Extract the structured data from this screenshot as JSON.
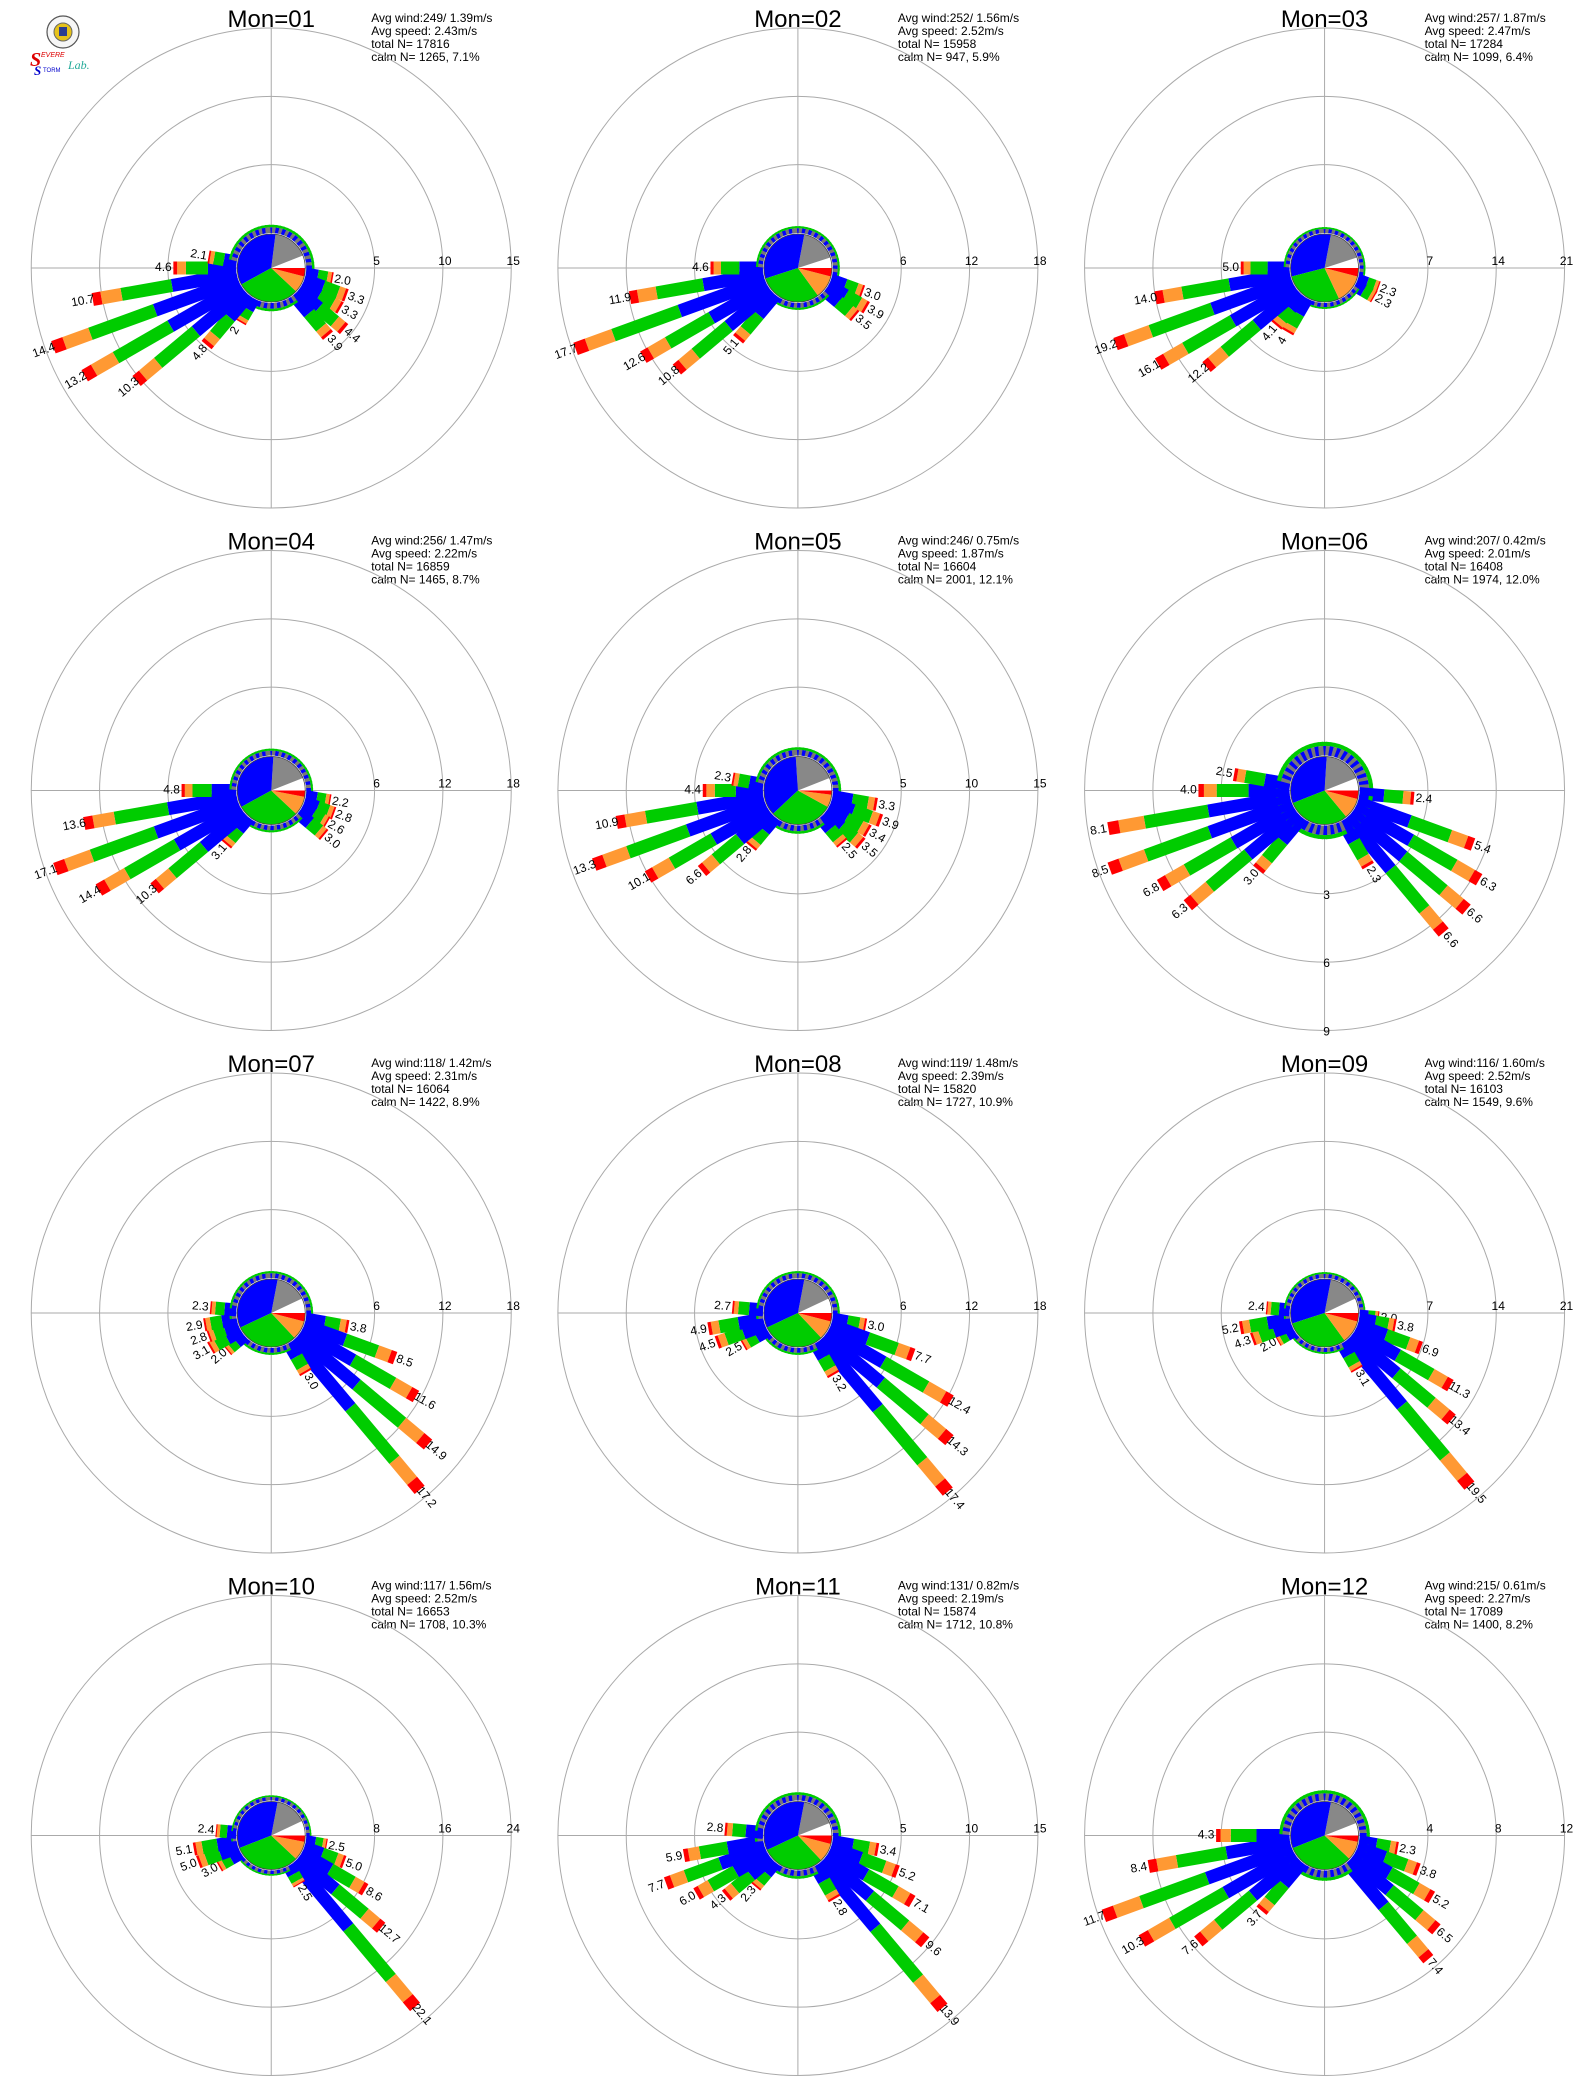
{
  "logo": {
    "text_s1": "S",
    "text_evere": "EVERE",
    "text_s2": "S",
    "text_torm": "TORM",
    "text_lab": "Lab."
  },
  "colors": {
    "calm": "#888888",
    "n": "#ffffff",
    "bin1": "#0000ff",
    "bin2": "#00cc00",
    "bin3": "#ff9933",
    "bin4": "#ff0000",
    "ring": "#aaaaaa"
  },
  "chart_data": [
    {
      "type": "polar-bar",
      "title": "Mon=01",
      "stats": [
        "Avg wind:249/ 1.39m/s",
        "Avg speed: 2.43m/s",
        "total N=      17816",
        "calm N=   1265,   7.1%"
      ],
      "rings": [
        "5",
        "10",
        "15"
      ],
      "rmax": 15,
      "ring_step": 5,
      "labeled": [
        {
          "dir": 250,
          "value": "14.4"
        },
        {
          "dir": 240,
          "value": "13.2"
        },
        {
          "dir": 230,
          "value": "10.3"
        },
        {
          "dir": 260,
          "value": "10.7"
        },
        {
          "dir": 270,
          "value": "4.6"
        },
        {
          "dir": 280,
          "value": "2.1"
        },
        {
          "dir": 220,
          "value": "4.8"
        },
        {
          "dir": 210,
          "value": "2"
        },
        {
          "dir": 100,
          "value": "2.0"
        },
        {
          "dir": 110,
          "value": "3.3"
        },
        {
          "dir": 120,
          "value": "3.3"
        },
        {
          "dir": 130,
          "value": "4.4"
        },
        {
          "dir": 140,
          "value": "3.9"
        }
      ],
      "pie": {
        "n": 6,
        "calm": 17,
        "bin1": 35,
        "bin2": 30,
        "bin3": 8,
        "bin4": 4
      }
    },
    {
      "type": "polar-bar",
      "title": "Mon=02",
      "stats": [
        "Avg wind:252/ 1.56m/s",
        "Avg speed: 2.52m/s",
        "total N=      15958",
        "calm N=    947,   5.9%"
      ],
      "rings": [
        "6",
        "12",
        "18"
      ],
      "rmax": 18,
      "ring_step": 6,
      "labeled": [
        {
          "dir": 250,
          "value": "17.7"
        },
        {
          "dir": 240,
          "value": "12.6"
        },
        {
          "dir": 230,
          "value": "10.8"
        },
        {
          "dir": 260,
          "value": "11.9"
        },
        {
          "dir": 270,
          "value": "4.6"
        },
        {
          "dir": 220,
          "value": "5.1"
        },
        {
          "dir": 110,
          "value": "3.0"
        },
        {
          "dir": 120,
          "value": "3.9"
        },
        {
          "dir": 130,
          "value": "3.5"
        }
      ],
      "pie": {
        "n": 5,
        "calm": 17,
        "bin1": 33,
        "bin2": 30,
        "bin3": 11,
        "bin4": 4
      }
    },
    {
      "type": "polar-bar",
      "title": "Mon=03",
      "stats": [
        "Avg wind:257/ 1.87m/s",
        "Avg speed: 2.47m/s",
        "total N=      17284",
        "calm N=   1099,   6.4%"
      ],
      "rings": [
        "7",
        "14",
        "21"
      ],
      "rmax": 21,
      "ring_step": 7,
      "labeled": [
        {
          "dir": 250,
          "value": "19.2"
        },
        {
          "dir": 240,
          "value": "16.1"
        },
        {
          "dir": 230,
          "value": "12.2"
        },
        {
          "dir": 260,
          "value": "14.0"
        },
        {
          "dir": 270,
          "value": "5.0"
        },
        {
          "dir": 220,
          "value": "4.1"
        },
        {
          "dir": 210,
          "value": "4"
        },
        {
          "dir": 110,
          "value": "2.3"
        },
        {
          "dir": 120,
          "value": "2.3"
        }
      ],
      "pie": {
        "n": 5,
        "calm": 17,
        "bin1": 32,
        "bin2": 28,
        "bin3": 14,
        "bin4": 4
      }
    },
    {
      "type": "polar-bar",
      "title": "Mon=04",
      "stats": [
        "Avg wind:256/ 1.47m/s",
        "Avg speed: 2.22m/s",
        "total N=      16859",
        "calm N=   1465,   8.7%"
      ],
      "rings": [
        "6",
        "12",
        "18"
      ],
      "rmax": 18,
      "ring_step": 6,
      "labeled": [
        {
          "dir": 250,
          "value": "17.1"
        },
        {
          "dir": 240,
          "value": "14.4"
        },
        {
          "dir": 230,
          "value": "10.3"
        },
        {
          "dir": 260,
          "value": "13.6"
        },
        {
          "dir": 270,
          "value": "4.8"
        },
        {
          "dir": 220,
          "value": "3.1"
        },
        {
          "dir": 100,
          "value": "2.2"
        },
        {
          "dir": 110,
          "value": "2.8"
        },
        {
          "dir": 120,
          "value": "2.6"
        },
        {
          "dir": 130,
          "value": "3.0"
        }
      ],
      "pie": {
        "n": 6,
        "calm": 18,
        "bin1": 34,
        "bin2": 30,
        "bin3": 9,
        "bin4": 3
      }
    },
    {
      "type": "polar-bar",
      "title": "Mon=05",
      "stats": [
        "Avg wind:246/ 0.75m/s",
        "Avg speed: 1.87m/s",
        "total N=      16604",
        "calm N=   2001,  12.1%"
      ],
      "rings": [
        "5",
        "10",
        "15"
      ],
      "rmax": 15,
      "ring_step": 5,
      "labeled": [
        {
          "dir": 250,
          "value": "13.3"
        },
        {
          "dir": 240,
          "value": "10.1"
        },
        {
          "dir": 260,
          "value": "10.9"
        },
        {
          "dir": 230,
          "value": "6.6"
        },
        {
          "dir": 220,
          "value": "2.8"
        },
        {
          "dir": 270,
          "value": "4.4"
        },
        {
          "dir": 280,
          "value": "2.3"
        },
        {
          "dir": 100,
          "value": "3.3"
        },
        {
          "dir": 110,
          "value": "3.9"
        },
        {
          "dir": 120,
          "value": "3.4"
        },
        {
          "dir": 130,
          "value": "3.5"
        },
        {
          "dir": 140,
          "value": "2.5"
        }
      ],
      "pie": {
        "n": 6,
        "calm": 20,
        "bin1": 36,
        "bin2": 30,
        "bin3": 6,
        "bin4": 2
      }
    },
    {
      "type": "polar-bar",
      "title": "Mon=06",
      "stats": [
        "Avg wind:207/ 0.42m/s",
        "Avg speed: 2.01m/s",
        "total N=      16408",
        "calm N=   1974,  12.0%"
      ],
      "rings": [
        "3",
        "6",
        "9"
      ],
      "rmax": 9,
      "ring_step": 3,
      "ring_labels_down": true,
      "labeled": [
        {
          "dir": 250,
          "value": "8.5"
        },
        {
          "dir": 260,
          "value": "8.1"
        },
        {
          "dir": 240,
          "value": "6.8"
        },
        {
          "dir": 230,
          "value": "6.3"
        },
        {
          "dir": 220,
          "value": "3.0"
        },
        {
          "dir": 270,
          "value": "4.0"
        },
        {
          "dir": 280,
          "value": "2.5"
        },
        {
          "dir": 95,
          "value": "2.4"
        },
        {
          "dir": 110,
          "value": "5.4"
        },
        {
          "dir": 120,
          "value": "6.3"
        },
        {
          "dir": 130,
          "value": "6.6"
        },
        {
          "dir": 140,
          "value": "6.6"
        },
        {
          "dir": 150,
          "value": "2.3"
        }
      ],
      "pie": {
        "n": 6,
        "calm": 18,
        "bin1": 32,
        "bin2": 30,
        "bin3": 10,
        "bin4": 4
      }
    },
    {
      "type": "polar-bar",
      "title": "Mon=07",
      "stats": [
        "Avg wind:118/ 1.42m/s",
        "Avg speed: 2.31m/s",
        "total N=      16064",
        "calm N=   1422,   8.9%"
      ],
      "rings": [
        "6",
        "12",
        "18"
      ],
      "rmax": 18,
      "ring_step": 6,
      "labeled": [
        {
          "dir": 100,
          "value": "3.8"
        },
        {
          "dir": 110,
          "value": "8.5"
        },
        {
          "dir": 120,
          "value": "11.6"
        },
        {
          "dir": 130,
          "value": "14.9"
        },
        {
          "dir": 140,
          "value": "17.2"
        },
        {
          "dir": 150,
          "value": "3.0"
        },
        {
          "dir": 260,
          "value": "2.9"
        },
        {
          "dir": 250,
          "value": "2.8"
        },
        {
          "dir": 240,
          "value": "3.1"
        },
        {
          "dir": 230,
          "value": "2.0"
        },
        {
          "dir": 275,
          "value": "2.3"
        }
      ],
      "pie": {
        "n": 7,
        "calm": 15,
        "bin1": 35,
        "bin2": 30,
        "bin3": 9,
        "bin4": 4
      }
    },
    {
      "type": "polar-bar",
      "title": "Mon=08",
      "stats": [
        "Avg wind:119/ 1.48m/s",
        "Avg speed: 2.39m/s",
        "total N=      15820",
        "calm N=   1727,  10.9%"
      ],
      "rings": [
        "6",
        "12",
        "18"
      ],
      "rmax": 18,
      "ring_step": 6,
      "labeled": [
        {
          "dir": 100,
          "value": "3.0"
        },
        {
          "dir": 110,
          "value": "7.7"
        },
        {
          "dir": 120,
          "value": "12.4"
        },
        {
          "dir": 130,
          "value": "14.3"
        },
        {
          "dir": 140,
          "value": "17.4"
        },
        {
          "dir": 150,
          "value": "3.2"
        },
        {
          "dir": 260,
          "value": "4.9"
        },
        {
          "dir": 250,
          "value": "4.5"
        },
        {
          "dir": 240,
          "value": "2.5"
        },
        {
          "dir": 275,
          "value": "2.7"
        }
      ],
      "pie": {
        "n": 7,
        "calm": 15,
        "bin1": 35,
        "bin2": 30,
        "bin3": 9,
        "bin4": 4
      }
    },
    {
      "type": "polar-bar",
      "title": "Mon=09",
      "stats": [
        "Avg wind:116/ 1.60m/s",
        "Avg speed: 2.52m/s",
        "total N=      16103",
        "calm N=   1549,   9.6%"
      ],
      "rings": [
        "7",
        "14",
        "21"
      ],
      "rmax": 21,
      "ring_step": 7,
      "labeled": [
        {
          "dir": 95,
          "value": "2.0"
        },
        {
          "dir": 100,
          "value": "3.8"
        },
        {
          "dir": 110,
          "value": "6.9"
        },
        {
          "dir": 120,
          "value": "11.3"
        },
        {
          "dir": 130,
          "value": "13.4"
        },
        {
          "dir": 140,
          "value": "19.5"
        },
        {
          "dir": 150,
          "value": "3.1"
        },
        {
          "dir": 260,
          "value": "5.2"
        },
        {
          "dir": 250,
          "value": "4.3"
        },
        {
          "dir": 240,
          "value": "2.0"
        },
        {
          "dir": 275,
          "value": "2.4"
        }
      ],
      "pie": {
        "n": 7,
        "calm": 15,
        "bin1": 33,
        "bin2": 30,
        "bin3": 11,
        "bin4": 4
      }
    },
    {
      "type": "polar-bar",
      "title": "Mon=10",
      "stats": [
        "Avg wind:117/ 1.56m/s",
        "Avg speed: 2.52m/s",
        "total N=      16653",
        "calm N=   1708,  10.3%"
      ],
      "rings": [
        "8",
        "16",
        "24"
      ],
      "rmax": 24,
      "ring_step": 8,
      "labeled": [
        {
          "dir": 100,
          "value": "2.5"
        },
        {
          "dir": 110,
          "value": "5.0"
        },
        {
          "dir": 120,
          "value": "8.6"
        },
        {
          "dir": 130,
          "value": "12.7"
        },
        {
          "dir": 140,
          "value": "22.1"
        },
        {
          "dir": 150,
          "value": "2.5"
        },
        {
          "dir": 260,
          "value": "5.1"
        },
        {
          "dir": 250,
          "value": "5.0"
        },
        {
          "dir": 240,
          "value": "3.0"
        },
        {
          "dir": 275,
          "value": "2.4"
        }
      ],
      "pie": {
        "n": 7,
        "calm": 15,
        "bin1": 34,
        "bin2": 32,
        "bin3": 9,
        "bin4": 3
      }
    },
    {
      "type": "polar-bar",
      "title": "Mon=11",
      "stats": [
        "Avg wind:131/ 0.82m/s",
        "Avg speed: 2.19m/s",
        "total N=      15874",
        "calm N=   1712,  10.8%"
      ],
      "rings": [
        "5",
        "10",
        "15"
      ],
      "rmax": 15,
      "ring_step": 5,
      "labeled": [
        {
          "dir": 100,
          "value": "3.4"
        },
        {
          "dir": 110,
          "value": "5.2"
        },
        {
          "dir": 120,
          "value": "7.1"
        },
        {
          "dir": 130,
          "value": "9.6"
        },
        {
          "dir": 140,
          "value": "13.9"
        },
        {
          "dir": 150,
          "value": "2.8"
        },
        {
          "dir": 260,
          "value": "5.9"
        },
        {
          "dir": 250,
          "value": "7.7"
        },
        {
          "dir": 240,
          "value": "6.0"
        },
        {
          "dir": 230,
          "value": "4.3"
        },
        {
          "dir": 220,
          "value": "2.3"
        },
        {
          "dir": 275,
          "value": "2.8"
        }
      ],
      "pie": {
        "n": 6,
        "calm": 16,
        "bin1": 35,
        "bin2": 30,
        "bin3": 9,
        "bin4": 4
      }
    },
    {
      "type": "polar-bar",
      "title": "Mon=12",
      "stats": [
        "Avg wind:215/ 0.61m/s",
        "Avg speed: 2.27m/s",
        "total N=      17089",
        "calm N=   1400,   8.2%"
      ],
      "rings": [
        "4",
        "8",
        "12"
      ],
      "rmax": 12,
      "ring_step": 4,
      "labeled": [
        {
          "dir": 250,
          "value": "11.7"
        },
        {
          "dir": 240,
          "value": "10.3"
        },
        {
          "dir": 230,
          "value": "7.6"
        },
        {
          "dir": 220,
          "value": "3.7"
        },
        {
          "dir": 260,
          "value": "8.4"
        },
        {
          "dir": 270,
          "value": "4.3"
        },
        {
          "dir": 100,
          "value": "2.3"
        },
        {
          "dir": 110,
          "value": "3.8"
        },
        {
          "dir": 120,
          "value": "5.2"
        },
        {
          "dir": 130,
          "value": "6.5"
        },
        {
          "dir": 140,
          "value": "7.4"
        }
      ],
      "pie": {
        "n": 6,
        "calm": 16,
        "bin1": 34,
        "bin2": 32,
        "bin3": 9,
        "bin4": 3
      }
    }
  ]
}
